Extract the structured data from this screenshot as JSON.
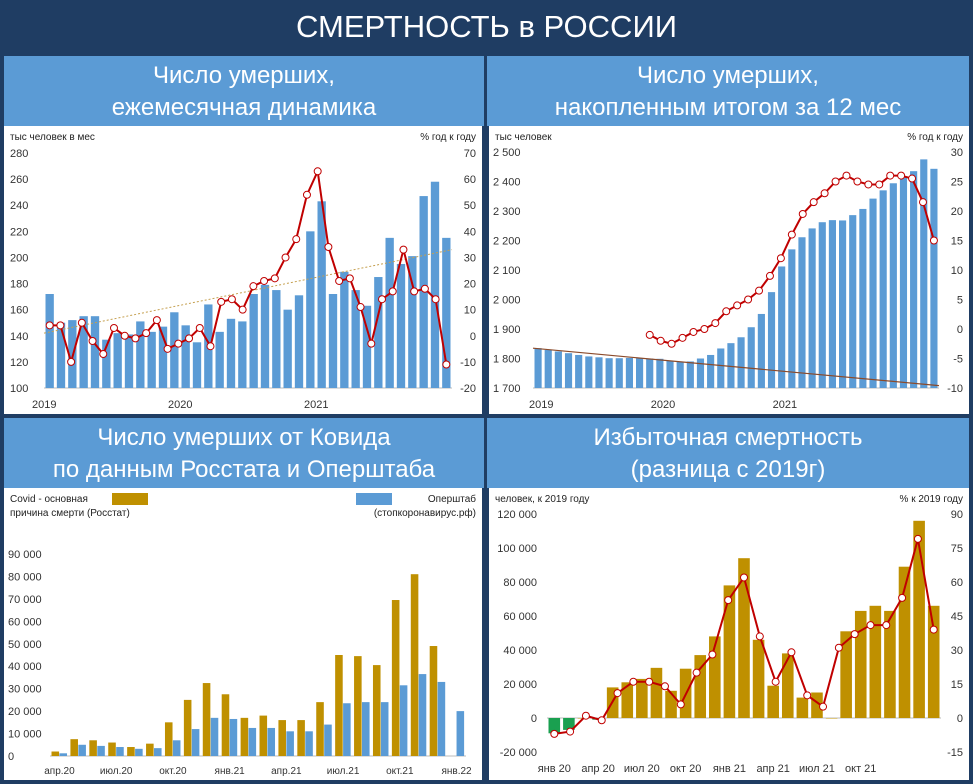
{
  "title": "СМЕРТНОСТЬ в РОССИИ",
  "panels": [
    {
      "header_line1": "Число умерших,",
      "header_line2": "ежемесячная динамика"
    },
    {
      "header_line1": "Число умерших,",
      "header_line2": "накопленным итогом за 12 мес"
    },
    {
      "header_line1": "Число умерших от Ковида",
      "header_line2": "по данным Росстата и Оперштаба"
    },
    {
      "header_line1": "Избыточная смертность",
      "header_line2": "(разница с 2019г)"
    }
  ],
  "chart_data": [
    {
      "type": "bar",
      "left_unit": "тыс человек в мес",
      "right_unit": "% год к году",
      "ylim": [
        100,
        280
      ],
      "y_ticks": [
        "100",
        "120",
        "140",
        "160",
        "180",
        "200",
        "220",
        "240",
        "260",
        "280"
      ],
      "y2lim": [
        -20,
        70
      ],
      "y2_ticks": [
        "-20",
        "-10",
        "0",
        "10",
        "20",
        "30",
        "40",
        "50",
        "60",
        "70"
      ],
      "x_labels": [
        {
          "label": "2019",
          "index": 0
        },
        {
          "label": "2020",
          "index": 12
        },
        {
          "label": "2021",
          "index": 24
        }
      ],
      "colors": {
        "bars": "#5b9bd5",
        "line": "#c00000",
        "trend": "#c5a050"
      },
      "series": [
        {
          "name": "",
          "axis": "left",
          "values": [
            172,
            150,
            152,
            155,
            155,
            137,
            142,
            141,
            151,
            143,
            147,
            158,
            148,
            135,
            164,
            143,
            153,
            151,
            172,
            179,
            175,
            160,
            171,
            220,
            243,
            172,
            189,
            175,
            163,
            185,
            215,
            195,
            201,
            247,
            258,
            215
          ]
        },
        {
          "name": "",
          "axis": "right",
          "values": [
            4,
            4,
            -10,
            5,
            0,
            -2,
            -7,
            3,
            0,
            1,
            -1,
            1,
            6,
            -5,
            -5,
            -3,
            -1,
            -3,
            -4,
            13,
            14,
            15,
            -6,
            -3,
            -8,
            19,
            21,
            20,
            21,
            11,
            22,
            23,
            35,
            37,
            54,
            63,
            68,
            34,
            22,
            15,
            35,
            36,
            8,
            18,
            17,
            25,
            34,
            45,
            46,
            58,
            66,
            33,
            29,
            26,
            13,
            17,
            24,
            31,
            -6,
            -13
          ]
        },
        {
          "name": "",
          "type": "trend",
          "axis": "left",
          "values": [
            142,
            206
          ]
        }
      ],
      "series_right_values": [
        4,
        4,
        -10,
        5,
        -2,
        -7,
        3,
        0,
        -1,
        1,
        6,
        -5,
        -3,
        -1,
        3,
        -4,
        13,
        14,
        -6,
        19,
        21,
        22,
        35,
        37,
        54,
        63,
        34,
        21,
        22,
        -8,
        17,
        20,
        33,
        17,
        18,
        14,
        -11
      ],
      "right_line": [
        4,
        4,
        -10,
        5,
        -2,
        -7,
        3,
        0,
        -1,
        1,
        6,
        -5,
        -3,
        -1,
        3,
        -4,
        13,
        14,
        10,
        19,
        21,
        22,
        30,
        37,
        54,
        63,
        34,
        21,
        22,
        11,
        -3,
        14,
        17,
        33,
        17,
        18,
        14,
        -11
      ]
    },
    {
      "type": "bar",
      "left_unit": "тыс человек",
      "right_unit": "% год к году",
      "ylim": [
        1700,
        2500
      ],
      "y_ticks": [
        "1 700",
        "1 800",
        "1 900",
        "2 000",
        "2 100",
        "2 200",
        "2 300",
        "2 400",
        "2 500"
      ],
      "y2lim": [
        -10,
        30
      ],
      "y2_ticks": [
        "-10",
        "-5",
        "0",
        "5",
        "10",
        "15",
        "20",
        "25",
        "30"
      ],
      "x_labels": [
        {
          "label": "2019",
          "index": 0
        },
        {
          "label": "2020",
          "index": 12
        },
        {
          "label": "2021",
          "index": 24
        }
      ],
      "colors": {
        "bars": "#5b9bd5",
        "line": "#c00000",
        "trend": "#8b4a2a"
      },
      "bars": [
        1835,
        1829,
        1824,
        1818,
        1812,
        1807,
        1804,
        1801,
        1801,
        1802,
        1801,
        1800,
        1799,
        1793,
        1789,
        1790,
        1800,
        1812,
        1834,
        1852,
        1872,
        1906,
        1951,
        2025,
        2112,
        2170,
        2211,
        2241,
        2262,
        2269,
        2268,
        2286,
        2307,
        2342,
        2370,
        2394,
        2415,
        2435,
        2475,
        2443
      ],
      "right_line_start_index": 11,
      "right_line": [
        -1,
        -2,
        -2.5,
        -1.5,
        -0.5,
        0,
        1,
        3,
        4,
        5,
        6.5,
        9,
        12,
        16,
        19.5,
        21.5,
        23,
        25,
        26,
        25,
        24.5,
        24.5,
        26,
        26,
        25.5,
        21.5,
        15
      ],
      "trend": [
        1835,
        1708
      ]
    },
    {
      "type": "bar",
      "legend": {
        "rosstat_line1": "Covid - основная",
        "rosstat_line2": "причина смерти (Росстат)",
        "ops_line1": "Оперштаб",
        "ops_line2": "(стопкоронавирус.рф)"
      },
      "ylim": [
        0,
        90000
      ],
      "y_ticks": [
        "0",
        "10 000",
        "20 000",
        "30 000",
        "40 000",
        "50 000",
        "60 000",
        "70 000",
        "80 000",
        "90 000"
      ],
      "x_labels": [
        {
          "label": "апр.20",
          "index": 0
        },
        {
          "label": "июл.20",
          "index": 3
        },
        {
          "label": "окт.20",
          "index": 6
        },
        {
          "label": "янв.21",
          "index": 9
        },
        {
          "label": "апр.21",
          "index": 12
        },
        {
          "label": "июл.21",
          "index": 15
        },
        {
          "label": "окт.21",
          "index": 18
        },
        {
          "label": "янв.22",
          "index": 21
        }
      ],
      "colors": {
        "rosstat": "#bf9000",
        "ops": "#5b9bd5"
      },
      "rosstat": [
        2000,
        7500,
        7000,
        6000,
        4000,
        5500,
        15000,
        25000,
        32500,
        27500,
        17000,
        18000,
        16000,
        16000,
        24000,
        45000,
        44500,
        40500,
        69500,
        81000,
        49000,
        null
      ],
      "ops": [
        1200,
        5000,
        4500,
        4000,
        3200,
        3500,
        7000,
        12000,
        17000,
        16500,
        12500,
        12500,
        11000,
        11000,
        14000,
        23500,
        24000,
        24000,
        31500,
        36500,
        33000,
        20000
      ]
    },
    {
      "type": "bar",
      "left_unit": "человек, к 2019 году",
      "right_unit": "% к 2019 году",
      "ylim": [
        -20000,
        120000
      ],
      "y_ticks": [
        "-20 000",
        "0",
        "20 000",
        "40 000",
        "60 000",
        "80 000",
        "100 000",
        "120 000"
      ],
      "y2lim": [
        -15,
        90
      ],
      "y2_ticks": [
        "-15",
        "0",
        "15",
        "30",
        "45",
        "60",
        "75",
        "90"
      ],
      "x_labels": [
        {
          "label": "янв 20",
          "index": 0
        },
        {
          "label": "апр 20",
          "index": 3
        },
        {
          "label": "июл 20",
          "index": 6
        },
        {
          "label": "окт 20",
          "index": 9
        },
        {
          "label": "янв 21",
          "index": 12
        },
        {
          "label": "апр 21",
          "index": 15
        },
        {
          "label": "июл 21",
          "index": 18
        },
        {
          "label": "окт 21",
          "index": 21
        }
      ],
      "colors": {
        "positive": "#bf9000",
        "negative": "#1aa050",
        "line": "#c00000"
      },
      "bars": [
        -9000,
        -7000,
        0,
        -1000,
        18000,
        21000,
        23000,
        29500,
        16000,
        29000,
        37000,
        48000,
        78000,
        94000,
        46000,
        19000,
        38000,
        12000,
        15000,
        0,
        51000,
        63000,
        66000,
        63000,
        89000,
        116000,
        66000
      ],
      "right_line": [
        -7,
        -6,
        1,
        -1,
        11,
        16,
        16,
        14,
        6,
        20,
        28,
        52,
        62,
        36,
        16,
        29,
        10,
        5,
        31,
        37,
        41,
        41,
        53,
        79,
        39
      ]
    }
  ]
}
